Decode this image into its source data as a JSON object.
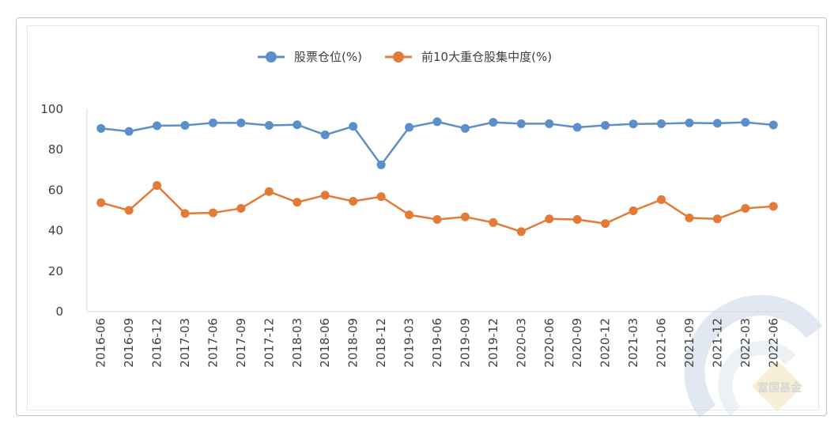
{
  "chart_data": {
    "type": "line",
    "categories": [
      "2016-06",
      "2016-09",
      "2016-12",
      "2017-03",
      "2017-06",
      "2017-09",
      "2017-12",
      "2018-03",
      "2018-06",
      "2018-09",
      "2018-12",
      "2019-03",
      "2019-06",
      "2019-09",
      "2019-12",
      "2020-03",
      "2020-06",
      "2020-09",
      "2020-12",
      "2021-03",
      "2021-06",
      "2021-09",
      "2021-12",
      "2022-03",
      "2022-06"
    ],
    "series": [
      {
        "name": "股票仓位(%)",
        "color": "#5b8fc9",
        "values": [
          90.5,
          89.0,
          91.8,
          92.0,
          93.2,
          93.2,
          92.0,
          92.3,
          87.3,
          91.5,
          72.5,
          91.0,
          93.8,
          90.5,
          93.5,
          92.8,
          92.8,
          91.0,
          92.0,
          92.7,
          92.8,
          93.2,
          93.0,
          93.5,
          92.2
        ]
      },
      {
        "name": "前10大重仓股集中度(%)",
        "color": "#e37a36",
        "values": [
          53.8,
          50.0,
          62.3,
          48.5,
          48.8,
          51.0,
          59.3,
          54.0,
          57.5,
          54.5,
          56.8,
          47.8,
          45.5,
          46.8,
          44.0,
          39.5,
          45.8,
          45.5,
          43.5,
          49.8,
          55.3,
          46.3,
          45.8,
          51.0,
          52.0
        ]
      }
    ],
    "yticks": [
      "0",
      "20",
      "40",
      "60",
      "80",
      "100"
    ],
    "ylim": [
      0,
      100
    ],
    "legend_position": "top-center",
    "watermark": "富国基金"
  }
}
